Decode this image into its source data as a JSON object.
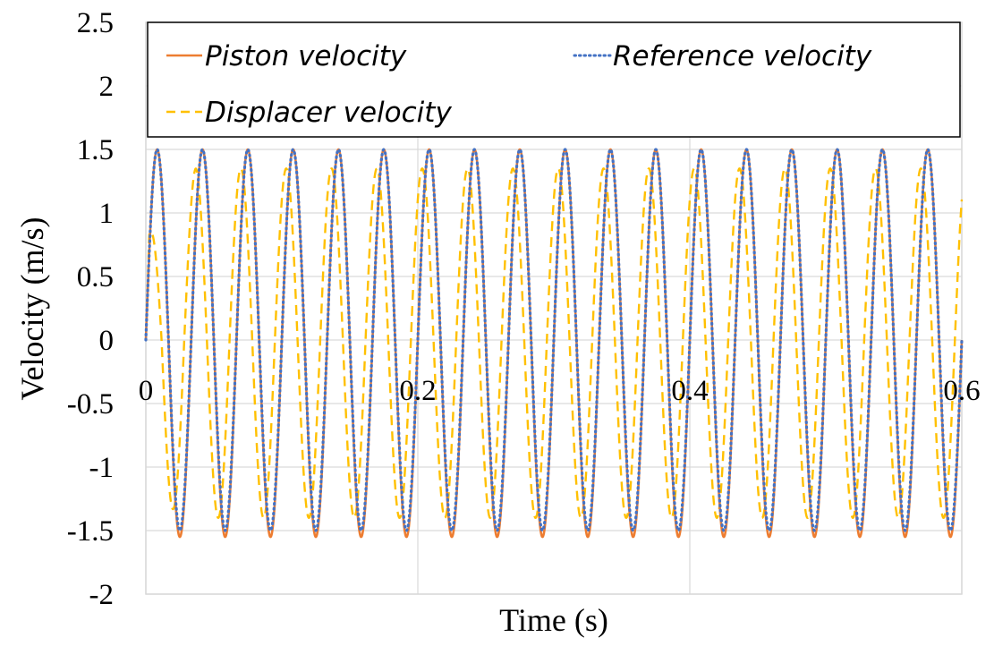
{
  "chart_data": {
    "type": "line",
    "title": "",
    "xlabel": "Time (s)",
    "ylabel": "Velocity (m/s)",
    "xlim": [
      0,
      0.6
    ],
    "ylim": [
      -2,
      2.5
    ],
    "x_ticks": [
      "0",
      "0.2",
      "0.4",
      "0.6"
    ],
    "y_ticks": [
      "2.5",
      "2",
      "1.5",
      "1",
      "0.5",
      "0",
      "-0.5",
      "-1",
      "-1.5",
      "-2"
    ],
    "grid": true,
    "legend_position": "top, spanning plot width",
    "series": [
      {
        "name": "Piston velocity",
        "color": "#ED7D31",
        "style": "solid",
        "frequency_hz": 30,
        "peak": 1.5,
        "trough": -1.55,
        "x": [
          0,
          0.0083,
          0.025,
          0.0417,
          0.0583,
          0.075,
          0.0917,
          0.1083,
          0.125,
          0.1417,
          0.1583,
          0.175,
          0.1917,
          0.2083,
          0.225,
          0.2417,
          0.2583,
          0.275,
          0.2917,
          0.3083,
          0.325,
          0.3417,
          0.3583,
          0.375,
          0.3917,
          0.4083,
          0.425,
          0.4417,
          0.4583,
          0.475,
          0.4917,
          0.5083,
          0.525,
          0.5417,
          0.5583,
          0.575,
          0.5917,
          0.6
        ],
        "y": [
          0,
          1.5,
          -1.55,
          1.5,
          -1.55,
          1.5,
          -1.53,
          1.5,
          -1.53,
          1.5,
          -1.52,
          1.5,
          -1.52,
          1.5,
          -1.52,
          1.5,
          -1.52,
          1.5,
          -1.52,
          1.5,
          -1.52,
          1.5,
          -1.52,
          1.5,
          -1.52,
          1.5,
          -1.52,
          1.5,
          -1.52,
          1.5,
          -1.52,
          1.5,
          -1.52,
          1.5,
          -1.52,
          1.5,
          -1.52,
          0
        ]
      },
      {
        "name": "Reference velocity",
        "color": "#4472C4",
        "style": "dotted",
        "frequency_hz": 30,
        "peak": 1.5,
        "trough": -1.5,
        "x": [
          0,
          0.0083,
          0.025,
          0.0417,
          0.0583,
          0.075,
          0.0917,
          0.1083,
          0.125,
          0.1417,
          0.1583,
          0.175,
          0.1917,
          0.2083,
          0.225,
          0.2417,
          0.2583,
          0.275,
          0.2917,
          0.3083,
          0.325,
          0.3417,
          0.3583,
          0.375,
          0.3917,
          0.4083,
          0.425,
          0.4417,
          0.4583,
          0.475,
          0.4917,
          0.5083,
          0.525,
          0.5417,
          0.5583,
          0.575,
          0.5917,
          0.6
        ],
        "y": [
          0,
          1.5,
          -1.5,
          1.5,
          -1.5,
          1.5,
          -1.5,
          1.5,
          -1.5,
          1.5,
          -1.5,
          1.5,
          -1.5,
          1.5,
          -1.5,
          1.5,
          -1.5,
          1.5,
          -1.5,
          1.5,
          -1.5,
          1.5,
          -1.5,
          1.5,
          -1.5,
          1.5,
          -1.5,
          1.5,
          -1.5,
          1.5,
          -1.5,
          1.5,
          -1.5,
          1.5,
          -1.5,
          1.5,
          -1.5,
          0
        ]
      },
      {
        "name": "Displacer velocity",
        "color": "#FFC000",
        "style": "dashed",
        "frequency_hz": 30,
        "peak": 1.35,
        "trough": -1.4,
        "phase_lead_deg": 55,
        "first_peak_y": 0.8,
        "first_trough_y": -1.25
      }
    ]
  }
}
